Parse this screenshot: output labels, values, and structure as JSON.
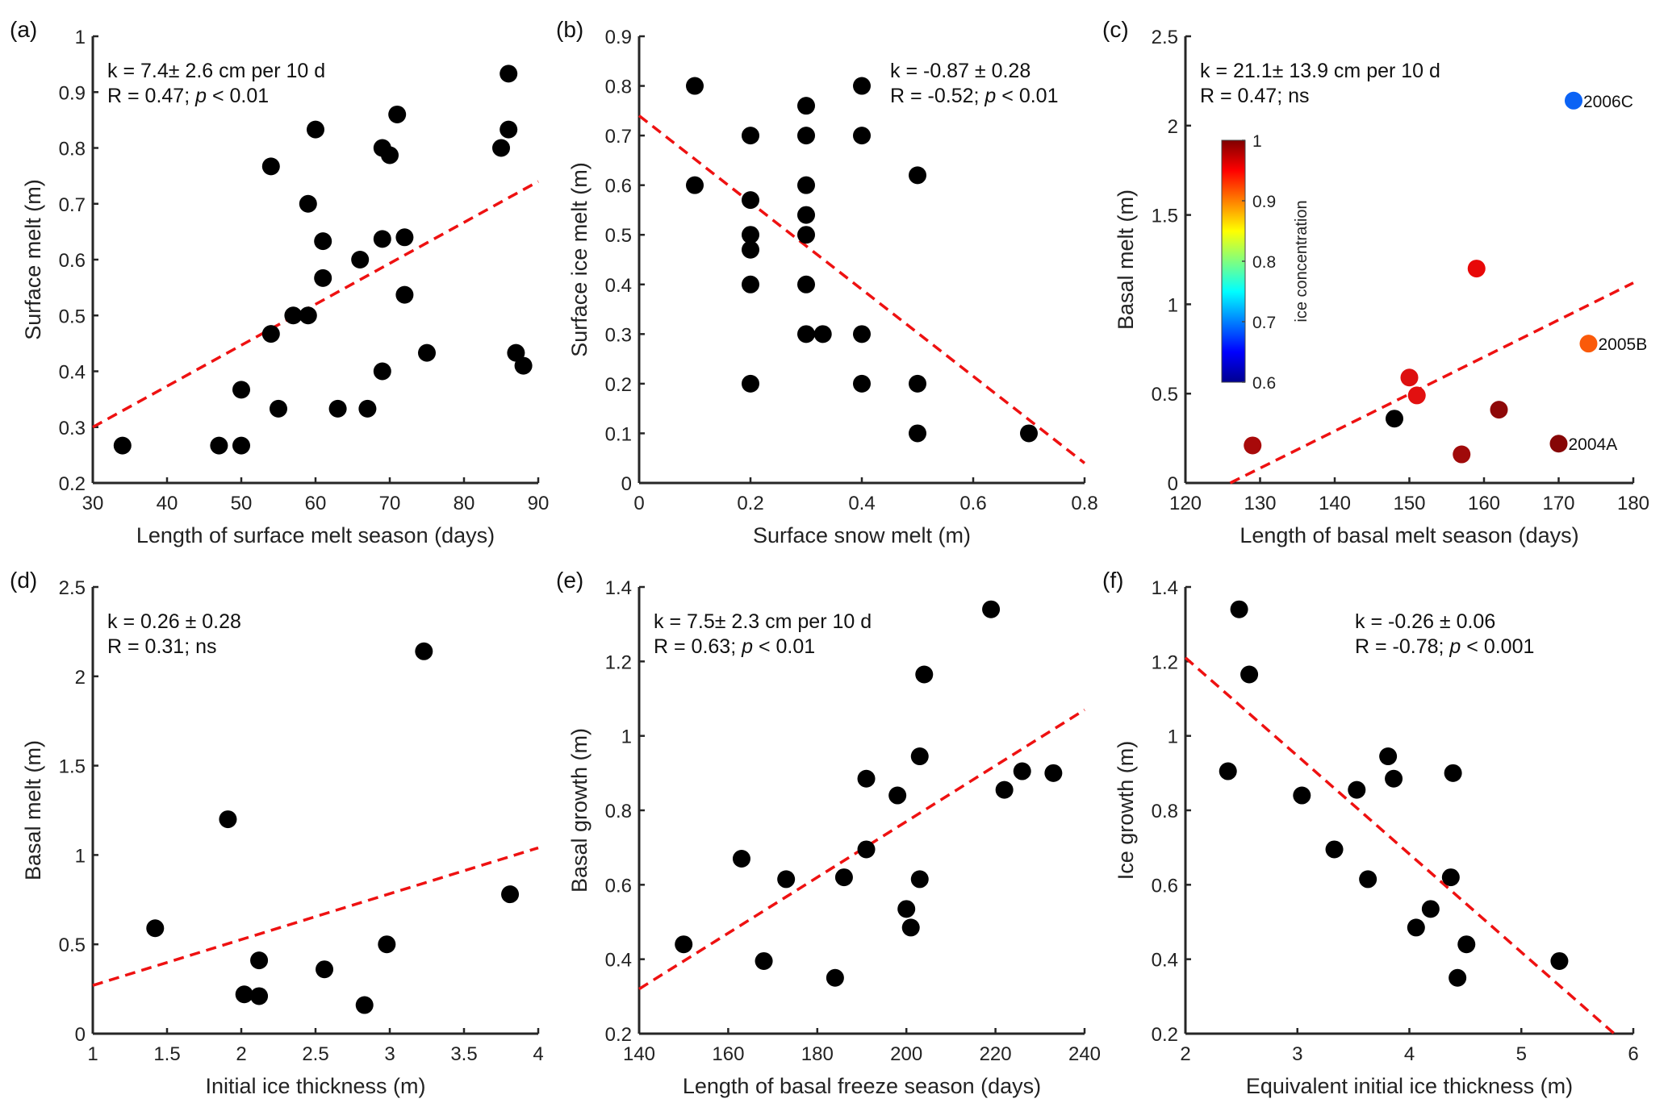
{
  "chart_data": [
    {
      "panel": "(a)",
      "type": "scatter",
      "xlabel": "Length of surface melt season (days)",
      "ylabel": "Surface melt (m)",
      "xlim": [
        30,
        90
      ],
      "ylim": [
        0.2,
        1
      ],
      "xticks": [
        30,
        40,
        50,
        60,
        70,
        80,
        90
      ],
      "yticks": [
        0.2,
        0.3,
        0.4,
        0.5,
        0.6,
        0.7,
        0.8,
        0.9,
        1
      ],
      "annotation": [
        [
          {
            "t": "k = 7.4±  2.6 cm per 10 d"
          }
        ],
        [
          {
            "t": "R = 0.47; "
          },
          {
            "t": "p",
            "i": true
          },
          {
            "t": " < 0.01"
          }
        ]
      ],
      "annotation_pos": "top-left",
      "fit": {
        "x": [
          30,
          90
        ],
        "y": [
          0.3,
          0.74
        ],
        "color": "#ee1111"
      },
      "points": [
        [
          34,
          0.267
        ],
        [
          47,
          0.267
        ],
        [
          50,
          0.267
        ],
        [
          50,
          0.367
        ],
        [
          54,
          0.467
        ],
        [
          54,
          0.767
        ],
        [
          55,
          0.333
        ],
        [
          57,
          0.5
        ],
        [
          59,
          0.5
        ],
        [
          59,
          0.7
        ],
        [
          60,
          0.833
        ],
        [
          61,
          0.633
        ],
        [
          61,
          0.567
        ],
        [
          63,
          0.333
        ],
        [
          66,
          0.6
        ],
        [
          67,
          0.333
        ],
        [
          69,
          0.8
        ],
        [
          70,
          0.787
        ],
        [
          69,
          0.637
        ],
        [
          69,
          0.4
        ],
        [
          71,
          0.86
        ],
        [
          72,
          0.64
        ],
        [
          72,
          0.537
        ],
        [
          75,
          0.433
        ],
        [
          85,
          0.8
        ],
        [
          86,
          0.933
        ],
        [
          86,
          0.833
        ],
        [
          87,
          0.433
        ],
        [
          88,
          0.41
        ]
      ]
    },
    {
      "panel": "(b)",
      "type": "scatter",
      "xlabel": "Surface snow melt (m)",
      "ylabel": "Surface ice melt (m)",
      "xlim": [
        0,
        0.8
      ],
      "ylim": [
        0,
        0.9
      ],
      "xticks": [
        0,
        0.2,
        0.4,
        0.6,
        0.8
      ],
      "yticks": [
        0,
        0.1,
        0.2,
        0.3,
        0.4,
        0.5,
        0.6,
        0.7,
        0.8,
        0.9
      ],
      "annotation": [
        [
          {
            "t": "k = -0.87 ± 0.28"
          }
        ],
        [
          {
            "t": "R = -0.52; "
          },
          {
            "t": "p",
            "i": true
          },
          {
            "t": " < 0.01"
          }
        ]
      ],
      "annotation_pos": "top-right",
      "fit": {
        "x": [
          0,
          0.8
        ],
        "y": [
          0.74,
          0.04
        ],
        "color": "#ee1111"
      },
      "points": [
        [
          0.1,
          0.8
        ],
        [
          0.1,
          0.6
        ],
        [
          0.2,
          0.7
        ],
        [
          0.2,
          0.57
        ],
        [
          0.2,
          0.5
        ],
        [
          0.2,
          0.47
        ],
        [
          0.2,
          0.4
        ],
        [
          0.2,
          0.2
        ],
        [
          0.3,
          0.76
        ],
        [
          0.3,
          0.7
        ],
        [
          0.3,
          0.6
        ],
        [
          0.3,
          0.54
        ],
        [
          0.3,
          0.5
        ],
        [
          0.3,
          0.4
        ],
        [
          0.3,
          0.3
        ],
        [
          0.33,
          0.3
        ],
        [
          0.4,
          0.8
        ],
        [
          0.4,
          0.7
        ],
        [
          0.4,
          0.3
        ],
        [
          0.4,
          0.2
        ],
        [
          0.5,
          0.62
        ],
        [
          0.5,
          0.2
        ],
        [
          0.5,
          0.1
        ],
        [
          0.7,
          0.1
        ]
      ]
    },
    {
      "panel": "(c)",
      "type": "scatter",
      "xlabel": "Length of basal melt season (days)",
      "ylabel": "Basal melt (m)",
      "xlim": [
        120,
        180
      ],
      "ylim": [
        0,
        2.5
      ],
      "xticks": [
        120,
        130,
        140,
        150,
        160,
        170,
        180
      ],
      "yticks": [
        0,
        0.5,
        1,
        1.5,
        2,
        2.5
      ],
      "annotation": [
        [
          {
            "t": "k = 21.1±  13.9 cm per 10 d"
          }
        ],
        [
          {
            "t": "R = 0.47; ns"
          }
        ]
      ],
      "annotation_pos": "top-left",
      "fit": {
        "x": [
          126,
          180
        ],
        "y": [
          0,
          1.12
        ],
        "color": "#ee1111"
      },
      "points": [
        [
          129,
          0.21,
          "#a80a0a"
        ],
        [
          148,
          0.36,
          "#000000"
        ],
        [
          150,
          0.59,
          "#dd1010"
        ],
        [
          151,
          0.49,
          "#e21010"
        ],
        [
          157,
          0.16,
          "#a00a0a"
        ],
        [
          159,
          1.2,
          "#e80808"
        ],
        [
          162,
          0.41,
          "#8e0808"
        ],
        [
          170,
          0.22,
          "#860606",
          "2004A"
        ],
        [
          172,
          2.14,
          "#0b63f5",
          "2006C"
        ],
        [
          174,
          0.78,
          "#fa5a0a",
          "2005B"
        ]
      ],
      "colorbar": {
        "label": "ice concentration",
        "range": [
          0.6,
          1
        ],
        "ticks": [
          "0.6",
          "0.7",
          "0.8",
          "0.9",
          "1"
        ],
        "colormap": "jet"
      }
    },
    {
      "panel": "(d)",
      "type": "scatter",
      "xlabel": "Initial ice thickness (m)",
      "ylabel": "Basal melt (m)",
      "xlim": [
        1,
        4
      ],
      "ylim": [
        0,
        2.5
      ],
      "xticks": [
        1,
        1.5,
        2,
        2.5,
        3,
        3.5,
        4
      ],
      "yticks": [
        0,
        0.5,
        1,
        1.5,
        2,
        2.5
      ],
      "annotation": [
        [
          {
            "t": "k = 0.26 ± 0.28"
          }
        ],
        [
          {
            "t": "R = 0.31; ns"
          }
        ]
      ],
      "annotation_pos": "top-left",
      "fit": {
        "x": [
          1,
          4
        ],
        "y": [
          0.27,
          1.04
        ],
        "color": "#ee1111"
      },
      "points": [
        [
          1.42,
          0.59
        ],
        [
          1.91,
          1.2
        ],
        [
          2.02,
          0.22
        ],
        [
          2.12,
          0.21
        ],
        [
          2.12,
          0.41
        ],
        [
          2.56,
          0.36
        ],
        [
          2.83,
          0.16
        ],
        [
          2.98,
          0.5
        ],
        [
          3.23,
          2.14
        ],
        [
          3.81,
          0.78
        ]
      ]
    },
    {
      "panel": "(e)",
      "type": "scatter",
      "xlabel": "Length of basal freeze season (days)",
      "ylabel": "Basal growth (m)",
      "xlim": [
        140,
        240
      ],
      "ylim": [
        0.2,
        1.4
      ],
      "xticks": [
        140,
        160,
        180,
        200,
        220,
        240
      ],
      "yticks": [
        0.2,
        0.4,
        0.6,
        0.8,
        1,
        1.2,
        1.4
      ],
      "annotation": [
        [
          {
            "t": "k = 7.5±  2.3 cm per 10 d"
          }
        ],
        [
          {
            "t": "R = 0.63; "
          },
          {
            "t": "p",
            "i": true
          },
          {
            "t": " < 0.01"
          }
        ]
      ],
      "annotation_pos": "top-left",
      "fit": {
        "x": [
          140,
          240
        ],
        "y": [
          0.32,
          1.07
        ],
        "color": "#ee1111"
      },
      "points": [
        [
          150,
          0.44
        ],
        [
          163,
          0.67
        ],
        [
          168,
          0.395
        ],
        [
          173,
          0.615
        ],
        [
          184,
          0.35
        ],
        [
          186,
          0.62
        ],
        [
          191,
          0.885
        ],
        [
          191,
          0.695
        ],
        [
          198,
          0.84
        ],
        [
          200,
          0.535
        ],
        [
          201,
          0.485
        ],
        [
          203,
          0.945
        ],
        [
          203,
          0.615
        ],
        [
          204,
          1.165
        ],
        [
          219,
          1.34
        ],
        [
          222,
          0.855
        ],
        [
          226,
          0.905
        ],
        [
          233,
          0.9
        ]
      ]
    },
    {
      "panel": "(f)",
      "type": "scatter",
      "xlabel": "Equivalent initial ice thickness (m)",
      "ylabel": "Ice growth (m)",
      "xlim": [
        2,
        6
      ],
      "ylim": [
        0.2,
        1.4
      ],
      "xticks": [
        2,
        3,
        4,
        5,
        6
      ],
      "yticks": [
        0.2,
        0.4,
        0.6,
        0.8,
        1,
        1.2,
        1.4
      ],
      "annotation": [
        [
          {
            "t": "k = -0.26 ± 0.06"
          }
        ],
        [
          {
            "t": "R = -0.78; "
          },
          {
            "t": "p",
            "i": true
          },
          {
            "t": " < 0.001"
          }
        ]
      ],
      "annotation_pos": "top-center",
      "fit": {
        "x": [
          2,
          5.83
        ],
        "y": [
          1.21,
          0.2
        ],
        "color": "#ee1111"
      },
      "points": [
        [
          2.38,
          0.905
        ],
        [
          2.48,
          1.34
        ],
        [
          2.57,
          1.165
        ],
        [
          3.04,
          0.84
        ],
        [
          3.33,
          0.695
        ],
        [
          3.53,
          0.855
        ],
        [
          3.63,
          0.615
        ],
        [
          3.81,
          0.945
        ],
        [
          3.86,
          0.885
        ],
        [
          4.06,
          0.485
        ],
        [
          4.19,
          0.535
        ],
        [
          4.37,
          0.62
        ],
        [
          4.39,
          0.9
        ],
        [
          4.43,
          0.35
        ],
        [
          4.51,
          0.44
        ],
        [
          5.34,
          0.395
        ]
      ]
    }
  ]
}
